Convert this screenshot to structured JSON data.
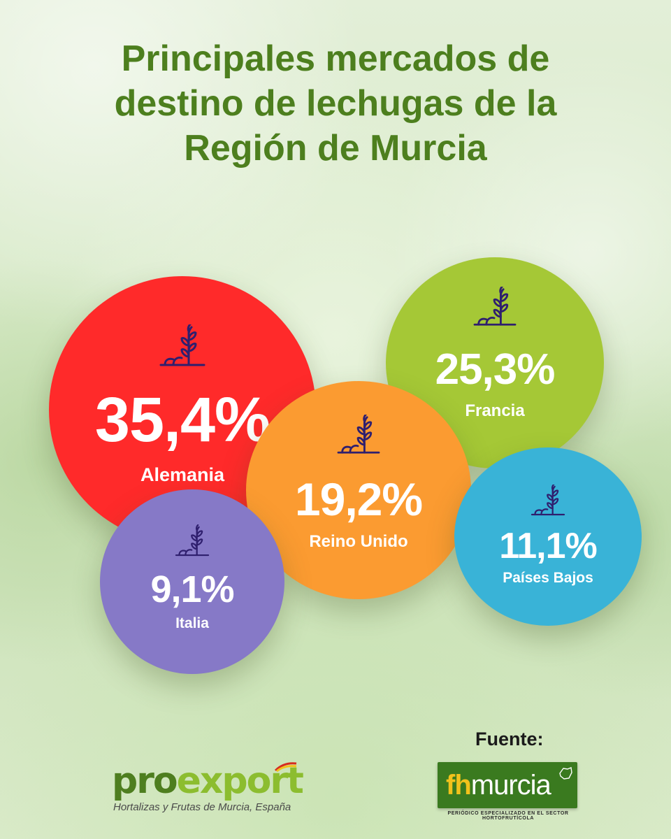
{
  "chart_data": {
    "type": "bubble",
    "title": "Principales mercados de destino de lechugas de la Región de Murcia",
    "title_lines": [
      "Principales mercados de",
      "destino de lechugas de la",
      "Región de Murcia"
    ],
    "unit": "%",
    "series": [
      {
        "country": "Alemania",
        "value": 35.4,
        "label": "35,4%",
        "color": "#ff2a2a"
      },
      {
        "country": "Francia",
        "value": 25.3,
        "label": "25,3%",
        "color": "#a5c836"
      },
      {
        "country": "Reino Unido",
        "value": 19.2,
        "label": "19,2%",
        "color": "#fb9b31"
      },
      {
        "country": "Italia",
        "value": 9.1,
        "label": "9,1%",
        "color": "#8679c7"
      },
      {
        "country": "Países Bajos",
        "value": 11.1,
        "label": "11,1%",
        "color": "#39b3d7"
      }
    ],
    "bubble_icon": "sprout-icon"
  },
  "footer": {
    "source_label": "Fuente:",
    "left_logo": {
      "name_part1": "pro",
      "name_part2": "export",
      "tagline": "Hortalizas y Frutas de Murcia, España"
    },
    "right_logo": {
      "fh": "fh",
      "murcia": "murcia",
      "tagline": "PERIÓDICO ESPECIALIZADO EN EL SECTOR HORTOFRUTÍCOLA"
    }
  },
  "colors": {
    "title": "#4d7f1e",
    "icon_stroke": "#2f1f6e",
    "brand_dark": "#4e7e1f",
    "brand_light": "#8cbd2f"
  }
}
